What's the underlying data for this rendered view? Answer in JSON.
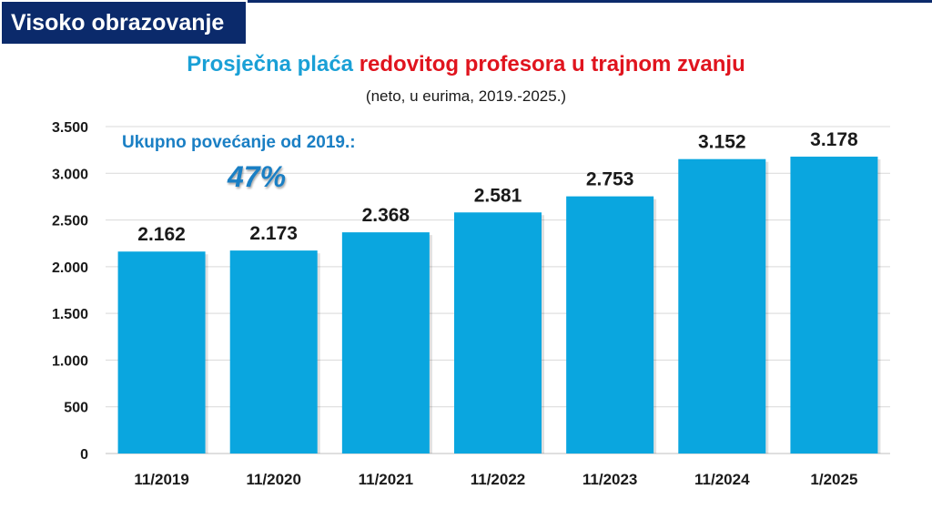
{
  "header": {
    "section_label": "Visoko obrazovanje"
  },
  "title": {
    "part1": "Prosječna plaća ",
    "part2": "redovitog profesora u trajnom zvanju",
    "subtitle": "(neto, u eurima, 2019.-2025.)"
  },
  "annotation": {
    "label": "Ukupno povećanje od 2019.:",
    "value": "47%"
  },
  "colors": {
    "bar": "#0aa6df",
    "title_blue": "#1aa0d6",
    "title_red": "#e0141e",
    "header_bg": "#0b2a6b",
    "annotation": "#1a7fc4"
  },
  "chart_data": {
    "type": "bar",
    "categories": [
      "11/2019",
      "11/2020",
      "11/2021",
      "11/2022",
      "11/2023",
      "11/2024",
      "1/2025"
    ],
    "values": [
      2162,
      2173,
      2368,
      2581,
      2753,
      3152,
      3178
    ],
    "value_labels": [
      "2.162",
      "2.173",
      "2.368",
      "2.581",
      "2.753",
      "3.152",
      "3.178"
    ],
    "y_ticks": [
      0,
      500,
      1000,
      1500,
      2000,
      2500,
      3000,
      3500
    ],
    "y_tick_labels": [
      "0",
      "500",
      "1.000",
      "1.500",
      "2.000",
      "2.500",
      "3.000",
      "3.500"
    ],
    "ylim": [
      0,
      3500
    ],
    "grid": true,
    "legend": "none"
  }
}
